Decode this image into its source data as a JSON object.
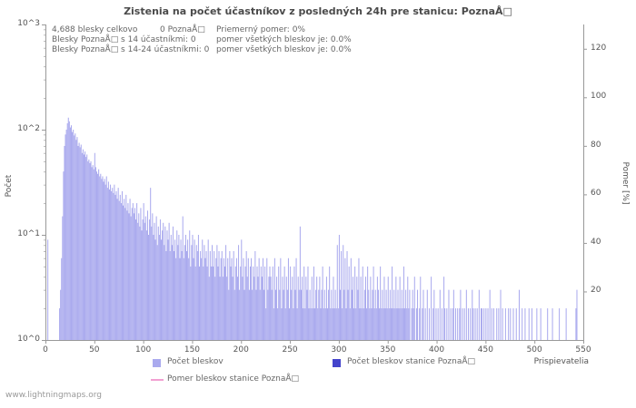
{
  "title": "Zistenia na počet účastníkov z posledných 24h pre stanicu: PoznaÅ□",
  "watermark": "www.lightningmaps.org",
  "stats": {
    "row1": {
      "total": "4,688 blesky celkovo",
      "station": "0 PoznaÅ□",
      "avg_ratio": "Priemerný pomer: 0%"
    },
    "row2": {
      "label": "Blesky PoznaÅ□ s 14 účastníkmi: 0",
      "ratio": "pomer všetkých bleskov je: 0.0%"
    },
    "row3": {
      "label": "Blesky PoznaÅ□ s 14-24 účastníkmi: 0",
      "ratio": "pomer všetkých bleskov je: 0.0%"
    }
  },
  "legend": [
    {
      "label": "Počet bleskov",
      "swatch": "#aaaaee",
      "type": "square"
    },
    {
      "label": "Počet bleskov stanice PoznaÅ□",
      "swatch": "#4444cc",
      "type": "square"
    },
    {
      "label": "Pomer bleskov stanice PoznaÅ□",
      "swatch": "#f2a0d2",
      "type": "line"
    }
  ],
  "chart_data": {
    "type": "bar",
    "title": "Zistenia na počet účastníkov z posledných 24h pre stanicu: PoznaÅ□",
    "xlabel": "Prispievatelia",
    "ylabel_left": "Počet",
    "ylabel_right": "Pomer [%]",
    "y_scale_left": "log",
    "ylim_left": [
      1,
      1000
    ],
    "y_ticks_left": [
      "10^0",
      "10^1",
      "10^2",
      "10^3"
    ],
    "ylim_right": [
      0,
      130
    ],
    "y_ticks_right": [
      20,
      40,
      60,
      80,
      100,
      120
    ],
    "xlim": [
      0,
      550
    ],
    "x_ticks": [
      0,
      50,
      100,
      150,
      200,
      250,
      300,
      350,
      400,
      450,
      500,
      550
    ],
    "grid": false,
    "bar_color": "#aaaaee",
    "axis_color": "#999999",
    "series": [
      {
        "name": "Počet bleskov",
        "x_start": 0,
        "x_step": 1,
        "values": [
          0,
          0,
          9,
          0,
          0,
          0,
          0,
          0,
          0,
          0,
          0,
          0,
          0,
          0,
          2,
          3,
          6,
          15,
          40,
          70,
          90,
          100,
          115,
          130,
          120,
          105,
          110,
          95,
          100,
          88,
          92,
          80,
          85,
          70,
          75,
          68,
          72,
          60,
          65,
          58,
          62,
          55,
          58,
          50,
          52,
          48,
          50,
          44,
          46,
          42,
          60,
          44,
          40,
          38,
          42,
          36,
          38,
          34,
          36,
          32,
          34,
          30,
          36,
          28,
          32,
          27,
          30,
          26,
          28,
          25,
          30,
          24,
          26,
          22,
          28,
          21,
          24,
          20,
          26,
          19,
          22,
          18,
          24,
          17,
          20,
          16,
          22,
          15,
          18,
          20,
          16,
          18,
          14,
          20,
          13,
          16,
          12,
          18,
          11,
          14,
          20,
          13,
          15,
          11,
          17,
          10,
          14,
          28,
          12,
          16,
          10,
          13,
          9,
          15,
          8,
          12,
          10,
          14,
          9,
          11,
          13,
          8,
          12,
          7,
          11,
          9,
          13,
          7,
          10,
          8,
          12,
          7,
          9,
          6,
          11,
          8,
          10,
          6,
          9,
          7,
          15,
          6,
          8,
          10,
          7,
          9,
          6,
          11,
          5,
          8,
          10,
          6,
          9,
          5,
          8,
          7,
          10,
          5,
          7,
          6,
          9,
          5,
          8,
          6,
          7,
          5,
          9,
          4,
          7,
          5,
          8,
          5,
          7,
          4,
          6,
          8,
          5,
          7,
          4,
          6,
          7,
          4,
          6,
          5,
          8,
          4,
          6,
          3,
          7,
          5,
          6,
          4,
          7,
          3,
          5,
          6,
          4,
          8,
          3,
          5,
          9,
          4,
          6,
          3,
          5,
          7,
          4,
          6,
          3,
          5,
          6,
          3,
          5,
          4,
          7,
          3,
          5,
          4,
          6,
          3,
          5,
          4,
          6,
          3,
          5,
          2,
          6,
          3,
          4,
          5,
          4,
          3,
          5,
          2,
          6,
          3,
          4,
          2,
          5,
          3,
          6,
          2,
          4,
          3,
          5,
          2,
          4,
          3,
          6,
          2,
          5,
          3,
          4,
          2,
          5,
          3,
          6,
          2,
          4,
          3,
          12,
          3,
          4,
          2,
          5,
          2,
          4,
          3,
          5,
          2,
          3,
          2,
          4,
          2,
          5,
          2,
          3,
          4,
          2,
          3,
          4,
          2,
          3,
          5,
          2,
          3,
          2,
          4,
          2,
          3,
          5,
          2,
          3,
          2,
          4,
          2,
          3,
          2,
          8,
          2,
          10,
          3,
          7,
          2,
          8,
          3,
          6,
          2,
          7,
          3,
          5,
          2,
          6,
          3,
          4,
          2,
          5,
          2,
          4,
          3,
          6,
          2,
          4,
          2,
          5,
          2,
          3,
          4,
          2,
          5,
          3,
          2,
          4,
          2,
          3,
          5,
          2,
          3,
          2,
          4,
          3,
          2,
          5,
          2,
          3,
          2,
          4,
          2,
          3,
          2,
          4,
          2,
          3,
          2,
          5,
          2,
          3,
          2,
          4,
          2,
          3,
          2,
          4,
          2,
          3,
          2,
          5,
          2,
          3,
          2,
          4,
          2,
          3,
          0,
          2,
          3,
          2,
          4,
          0,
          2,
          3,
          0,
          2,
          4,
          0,
          2,
          3,
          0,
          2,
          0,
          3,
          0,
          2,
          0,
          4,
          0,
          2,
          3,
          0,
          2,
          0,
          2,
          0,
          3,
          0,
          2,
          0,
          4,
          2,
          0,
          2,
          0,
          3,
          0,
          2,
          0,
          2,
          3,
          0,
          2,
          0,
          2,
          0,
          2,
          3,
          0,
          2,
          0,
          2,
          0,
          3,
          0,
          2,
          0,
          2,
          0,
          3,
          2,
          0,
          2,
          0,
          2,
          0,
          3,
          0,
          2,
          2,
          0,
          2,
          0,
          2,
          0,
          2,
          0,
          3,
          0,
          2,
          0,
          2,
          0,
          0,
          2,
          0,
          2,
          0,
          3,
          0,
          2,
          0,
          0,
          2,
          0,
          0,
          2,
          0,
          2,
          0,
          0,
          2,
          0,
          0,
          2,
          0,
          0,
          3,
          0,
          0,
          2,
          0,
          0,
          2,
          0,
          0,
          0,
          2,
          0,
          0,
          2,
          0,
          0,
          0,
          0,
          2,
          0,
          0,
          0,
          2,
          0,
          0,
          0,
          0,
          0,
          0,
          2,
          0,
          0,
          0,
          0,
          2,
          0,
          0,
          0,
          0,
          0,
          0,
          2,
          0,
          0,
          0,
          0,
          0,
          0,
          2,
          0,
          0,
          0,
          0,
          0,
          0,
          0,
          0,
          0,
          2,
          3,
          0,
          0,
          0,
          0,
          0,
          0,
          2
        ]
      },
      {
        "name": "Počet bleskov stanice PoznaÅ□",
        "values_constant": 0
      },
      {
        "name": "Pomer bleskov stanice PoznaÅ□",
        "values_constant": 0,
        "unit": "%"
      }
    ]
  }
}
